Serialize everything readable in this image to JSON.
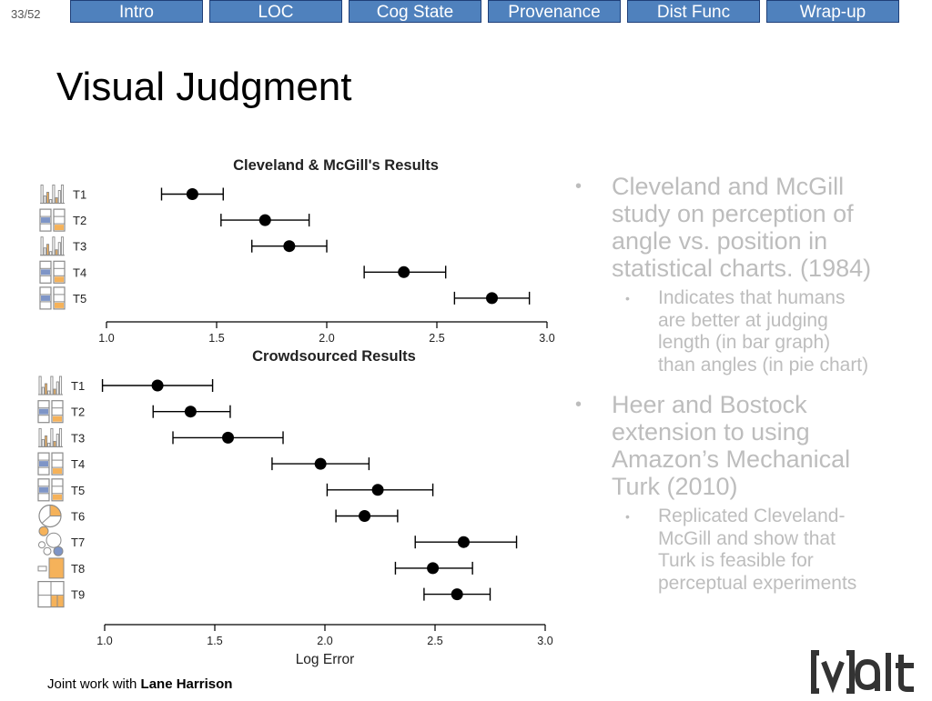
{
  "slide_counter": "33/52",
  "nav": {
    "tabs": [
      {
        "label": "Intro"
      },
      {
        "label": "LOC"
      },
      {
        "label": "Cog State"
      },
      {
        "label": "Provenance"
      },
      {
        "label": "Dist Func"
      },
      {
        "label": "Wrap-up"
      }
    ]
  },
  "title": "Visual Judgment",
  "colors": {
    "tab_fill": "#4f81bd",
    "tab_border": "#1f3f78",
    "bullet_text": "#bdbdbd",
    "icon_orange": "#f5b25a",
    "icon_blue": "#7e95c7"
  },
  "chart_data": [
    {
      "type": "scatter",
      "title": "Cleveland & McGill's Results",
      "xlabel": "",
      "xlim": [
        1.0,
        3.0
      ],
      "xticks": [
        "1.0",
        "1.5",
        "2.0",
        "2.5",
        "3.0"
      ],
      "error_bars": true,
      "categories": [
        "T1",
        "T2",
        "T3",
        "T4",
        "T5"
      ],
      "values": [
        1.39,
        1.72,
        1.83,
        2.35,
        2.75
      ],
      "low": [
        1.25,
        1.52,
        1.66,
        2.17,
        2.58
      ],
      "high": [
        1.53,
        1.92,
        2.0,
        2.54,
        2.92
      ],
      "icons": [
        "bars-icon",
        "stacked-bars-icon",
        "bars-icon",
        "stacked-bars-icon",
        "stacked-bars-icon"
      ]
    },
    {
      "type": "scatter",
      "title": "Crowdsourced Results",
      "xlabel": "Log Error",
      "xlim": [
        1.0,
        3.0
      ],
      "xticks": [
        "1.0",
        "1.5",
        "2.0",
        "2.5",
        "3.0"
      ],
      "error_bars": true,
      "categories": [
        "T1",
        "T2",
        "T3",
        "T4",
        "T5",
        "T6",
        "T7",
        "T8",
        "T9"
      ],
      "values": [
        1.24,
        1.39,
        1.56,
        1.98,
        2.24,
        2.18,
        2.63,
        2.49,
        2.6
      ],
      "low": [
        0.99,
        1.22,
        1.31,
        1.76,
        2.01,
        2.05,
        2.41,
        2.32,
        2.45
      ],
      "high": [
        1.49,
        1.57,
        1.81,
        2.2,
        2.49,
        2.33,
        2.87,
        2.67,
        2.75
      ],
      "icons": [
        "bars-icon",
        "stacked-bars-icon",
        "bars-icon",
        "stacked-bars-icon",
        "stacked-bars-icon",
        "pie-icon",
        "bubbles-icon",
        "squares-icon",
        "treemap-icon"
      ]
    }
  ],
  "bullets": [
    {
      "text": "Cleveland and McGill study on perception of angle vs. position in statistical charts. (1984)",
      "lines": [
        "Cleveland and McGill",
        "study on perception of",
        "angle vs. position in",
        "statistical charts. (1984)"
      ],
      "sub": {
        "text": "Indicates that humans are better at judging length (in bar graph) than angles (in pie chart)",
        "lines": [
          "Indicates that humans",
          "are better at judging",
          "length (in bar graph)",
          "than angles (in pie chart)"
        ]
      }
    },
    {
      "text": "Heer  and Bostock extension to using Amazon’s Mechanical Turk (2010)",
      "lines": [
        "Heer  and Bostock",
        "extension to using",
        "Amazon’s Mechanical",
        "Turk (2010)"
      ],
      "sub": {
        "text": "Replicated Cleveland-McGill and show that Turk is feasible for perceptual experiments",
        "lines": [
          "Replicated Cleveland-",
          "McGill and show that",
          "Turk is feasible for",
          "perceptual experiments"
        ]
      }
    }
  ],
  "bullet_marker": "•",
  "credit": {
    "prefix": "Joint work with ",
    "name": "Lane Harrison"
  },
  "logo_text": "[v]alt"
}
